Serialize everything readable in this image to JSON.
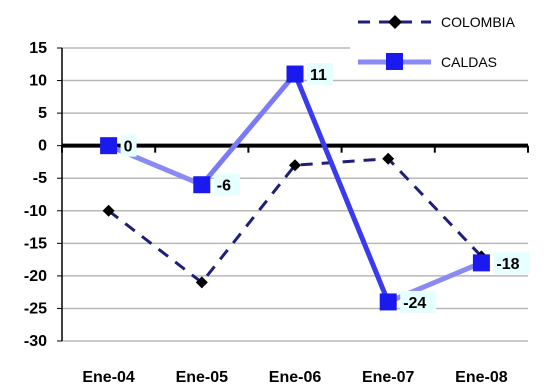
{
  "chart_data": {
    "type": "line",
    "categories": [
      "Ene-04",
      "Ene-05",
      "Ene-06",
      "Ene-07",
      "Ene-08"
    ],
    "series": [
      {
        "name": "COLOMBIA",
        "values": [
          -10,
          -21,
          -3,
          -2,
          -17
        ],
        "color": "#1f1f7a",
        "marker": "diamond",
        "line_style": "dashed"
      },
      {
        "name": "CALDAS",
        "values": [
          0,
          -6,
          11,
          -24,
          -18
        ],
        "color": "#3333ee",
        "marker": "square",
        "line_style": "solid",
        "data_labels": [
          "0",
          "-6",
          "11",
          "-24",
          "-18"
        ]
      }
    ],
    "ylim": [
      -30,
      15
    ],
    "yticks": [
      "15",
      "10",
      "5",
      "0",
      "-5",
      "-10",
      "-15",
      "-20",
      "-25",
      "-30"
    ],
    "grid": true,
    "legend": "top-right",
    "title": "",
    "xlabel": "",
    "ylabel": ""
  }
}
